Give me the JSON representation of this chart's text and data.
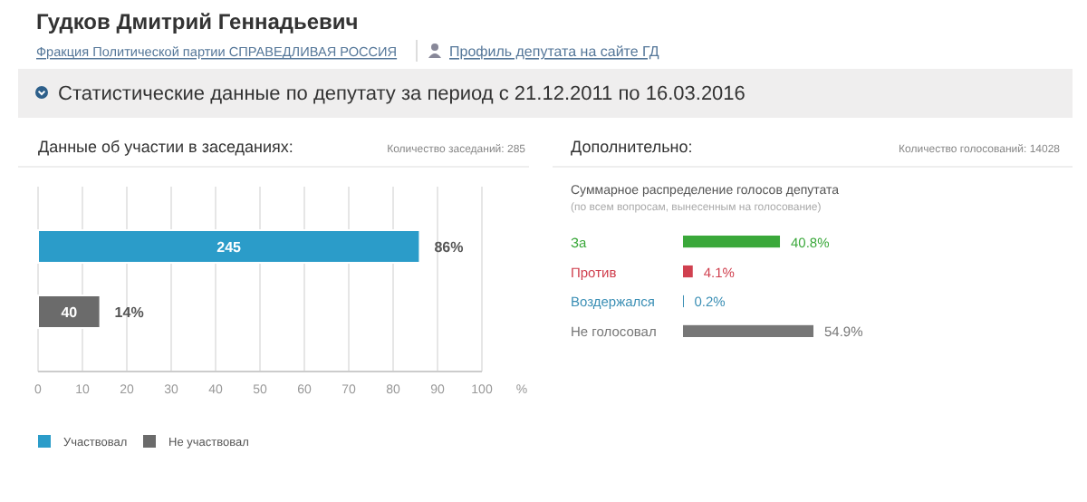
{
  "chart_data": [
    {
      "type": "bar",
      "orientation": "horizontal",
      "title": "Данные об участии в заседаниях:",
      "xlabel": "%",
      "categories": [
        null,
        null
      ],
      "series": [
        {
          "name": "Участвовал",
          "color": "#2b9cc9",
          "values": [
            86,
            null
          ],
          "value_labels": [
            "86%",
            null
          ]
        },
        {
          "name": "Не участвовал",
          "color": "#6b6b6b",
          "values": [
            null,
            14
          ],
          "value_labels": [
            null,
            "14%"
          ]
        }
      ],
      "xlim": [
        0,
        100
      ],
      "xticks": [
        0,
        10,
        20,
        30,
        40,
        50,
        60,
        70,
        80,
        90,
        100
      ],
      "grid": "x",
      "legend": "bottom",
      "tick_labels": "x",
      "annotations": [
        "Гудков Дмитрий Геннадьевич",
        "Фракция Политической партии СПРАВЕДЛИВАЯ РОССИЯ",
        "Профиль депутата на сайте ГД",
        "Статистические данные по депутату за период с 21.12.2011 по 16.03.2016",
        "Количество заседаний: 285",
        "245",
        "40"
      ]
    },
    {
      "type": "bar",
      "orientation": "horizontal",
      "title": "Дополнительно:",
      "subtitle": "Суммарное распределение голосов депутата",
      "categories": [
        "За",
        "Против",
        "Воздержался",
        "Не голосовал"
      ],
      "values": [
        40.8,
        4.1,
        0.2,
        54.9
      ],
      "colors": [
        "#3aa83a",
        "#d0404f",
        "#3b8fb5",
        "#777777"
      ],
      "value_labels": [
        "40.8%",
        "4.1%",
        "0.2%",
        "54.9%"
      ],
      "tick_labels": "y",
      "annotations": [
        "Количество голосований: 14028",
        "(по всем вопросам, вынесенным на голосование)"
      ]
    }
  ]
}
